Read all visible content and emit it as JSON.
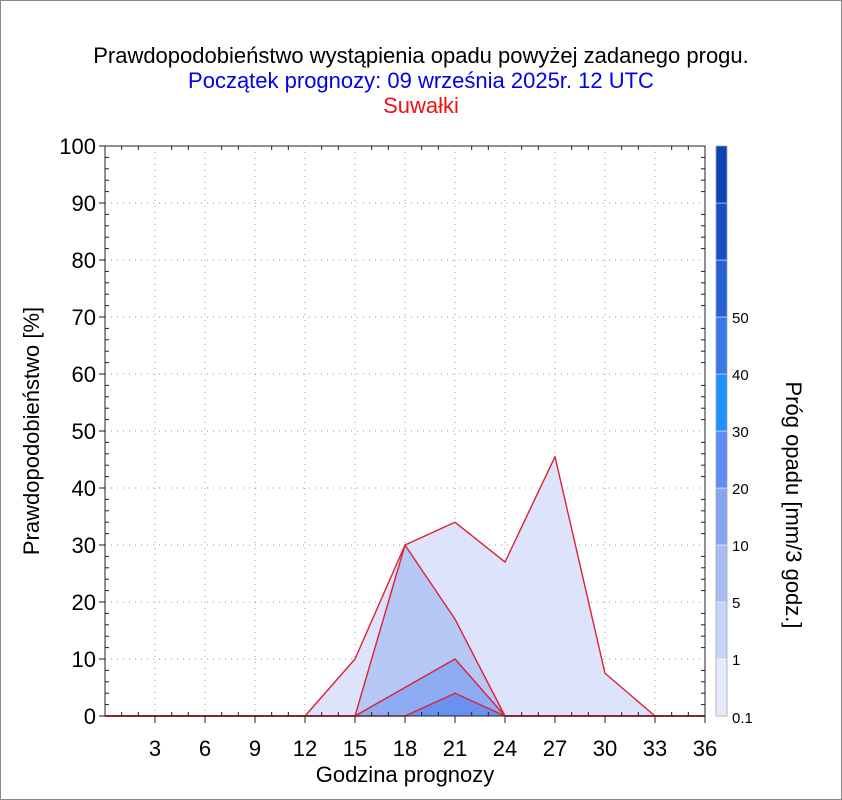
{
  "header": {
    "title": "Prawdopodobieństwo wystąpienia opadu powyżej zadanego progu.",
    "subtitle": "Początek prognozy: 09 września 2025r. 12 UTC",
    "location": "Suwałki"
  },
  "colors": {
    "title": "#000000",
    "subtitle": "#0000ee",
    "location": "#ee1111",
    "series_outline": "#dd2233"
  },
  "chart_data": {
    "type": "area",
    "title": "Prawdopodobieństwo wystąpienia opadu powyżej zadanego progu.",
    "xlabel": "Godzina prognozy",
    "ylabel": "Prawdopodobieństwo [%]",
    "x": [
      0,
      3,
      6,
      9,
      12,
      15,
      18,
      21,
      24,
      27,
      30,
      33,
      36
    ],
    "x_ticks": [
      "3",
      "6",
      "9",
      "12",
      "15",
      "18",
      "21",
      "24",
      "27",
      "30",
      "33",
      "36"
    ],
    "xlim": [
      0,
      36
    ],
    "ylim": [
      0,
      100
    ],
    "y_ticks": [
      "0",
      "10",
      "20",
      "30",
      "40",
      "50",
      "60",
      "70",
      "80",
      "90",
      "100"
    ],
    "grid": true,
    "series": [
      {
        "threshold": 0.1,
        "color": "#dde3fb",
        "values": [
          0,
          0,
          0,
          0,
          0,
          10,
          30,
          34,
          27,
          45.5,
          7.5,
          0,
          0
        ]
      },
      {
        "threshold": 1,
        "color": "#b5c8f6",
        "values": [
          0,
          0,
          0,
          0,
          0,
          0,
          30,
          17,
          0,
          0,
          0,
          0,
          0
        ]
      },
      {
        "threshold": 5,
        "color": "#8eacf3",
        "values": [
          0,
          0,
          0,
          0,
          0,
          0,
          5,
          10,
          0,
          0,
          0,
          0,
          0
        ]
      },
      {
        "threshold": 10,
        "color": "#6a91ef",
        "values": [
          0,
          0,
          0,
          0,
          0,
          0,
          0,
          4,
          0,
          0,
          0,
          0,
          0
        ]
      }
    ],
    "colorbar": {
      "label": "Próg opadu [mm/3 godz.]",
      "tick_labels": [
        "0.1",
        "1",
        "5",
        "10",
        "20",
        "30",
        "40",
        "50"
      ],
      "colors": [
        "#e6eaff",
        "#c8d3fb",
        "#a8bdf6",
        "#86a5f1",
        "#5e8ef3",
        "#1e90ff",
        "#3a78e8",
        "#2462d6",
        "#1650c4",
        "#0d44b4"
      ]
    }
  }
}
